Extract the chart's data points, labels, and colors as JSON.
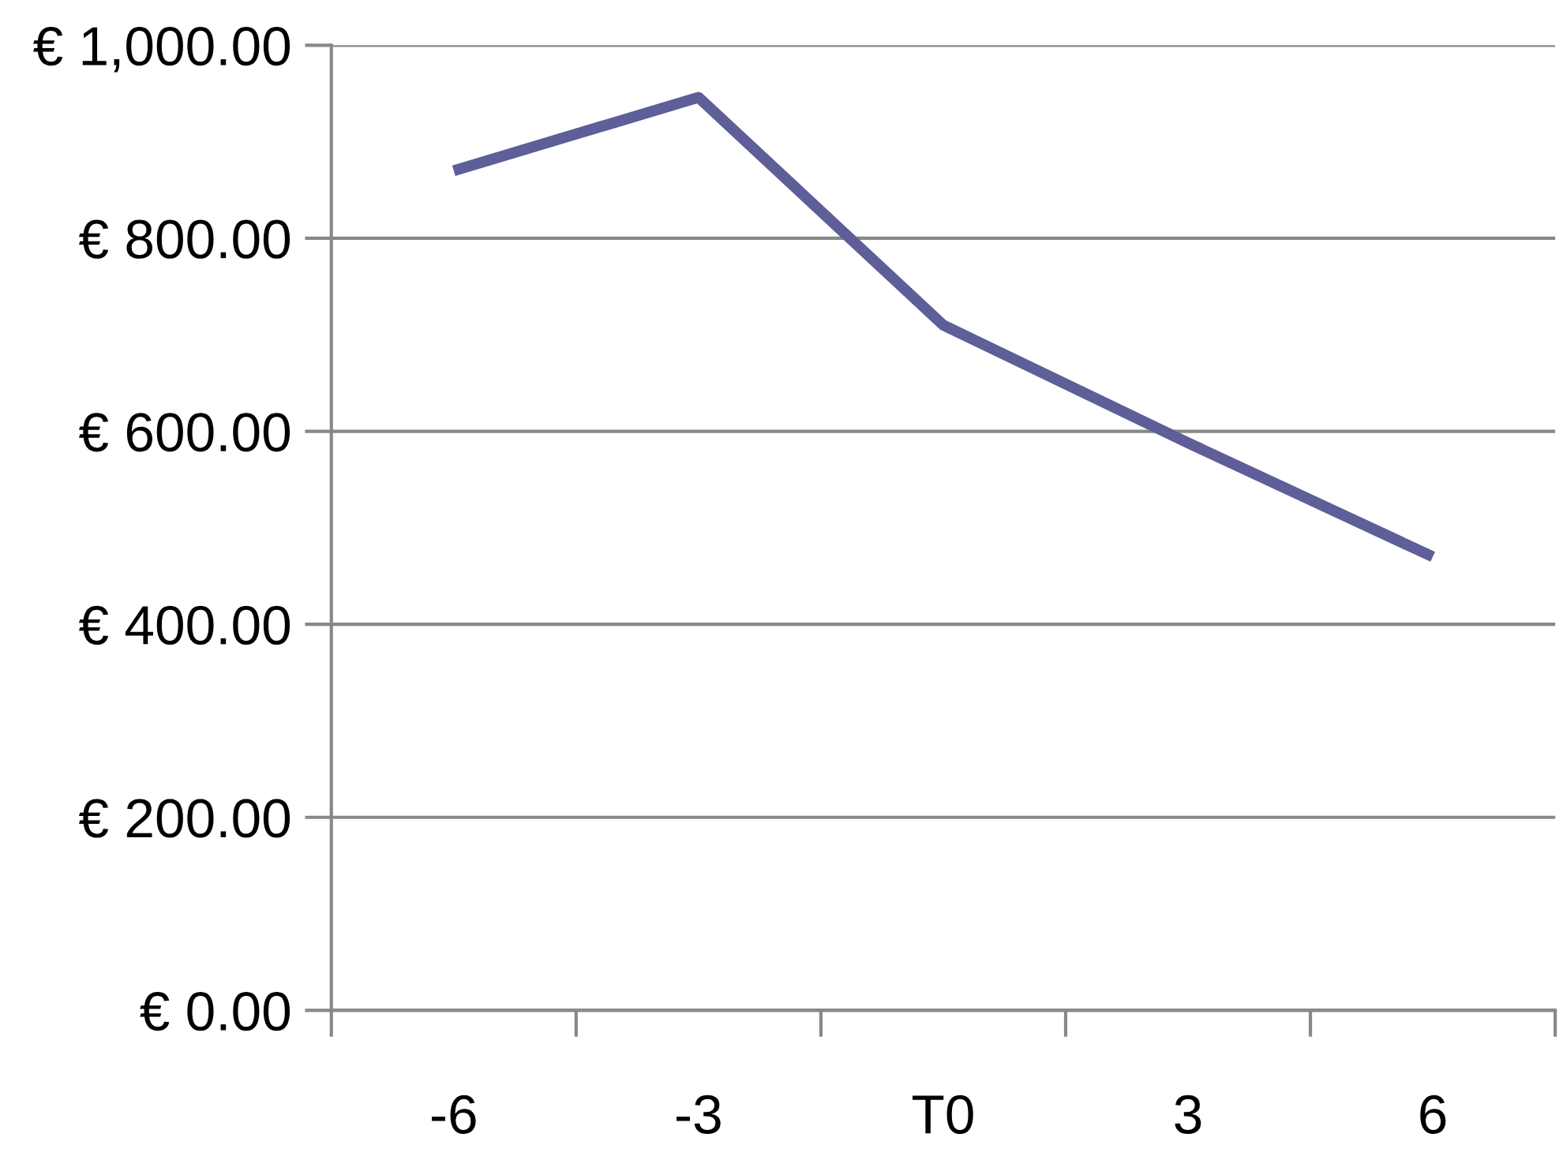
{
  "chart_data": {
    "type": "line",
    "categories": [
      "-6",
      "-3",
      "T0",
      "3",
      "6"
    ],
    "series": [
      {
        "color": "#5e5e98",
        "values": [
          870,
          946,
          710,
          588,
          470
        ]
      }
    ],
    "ylim": [
      0,
      1000
    ],
    "yticks": [
      {
        "value": 0,
        "label": "€ 0.00"
      },
      {
        "value": 200,
        "label": "€ 200.00"
      },
      {
        "value": 400,
        "label": "€ 400.00"
      },
      {
        "value": 600,
        "label": "€ 600.00"
      },
      {
        "value": 800,
        "label": "€ 800.00"
      },
      {
        "value": 1000,
        "label": "€ 1,000.00"
      }
    ],
    "grid": "y",
    "legend": false,
    "marker": "none",
    "line_style": "solid"
  }
}
